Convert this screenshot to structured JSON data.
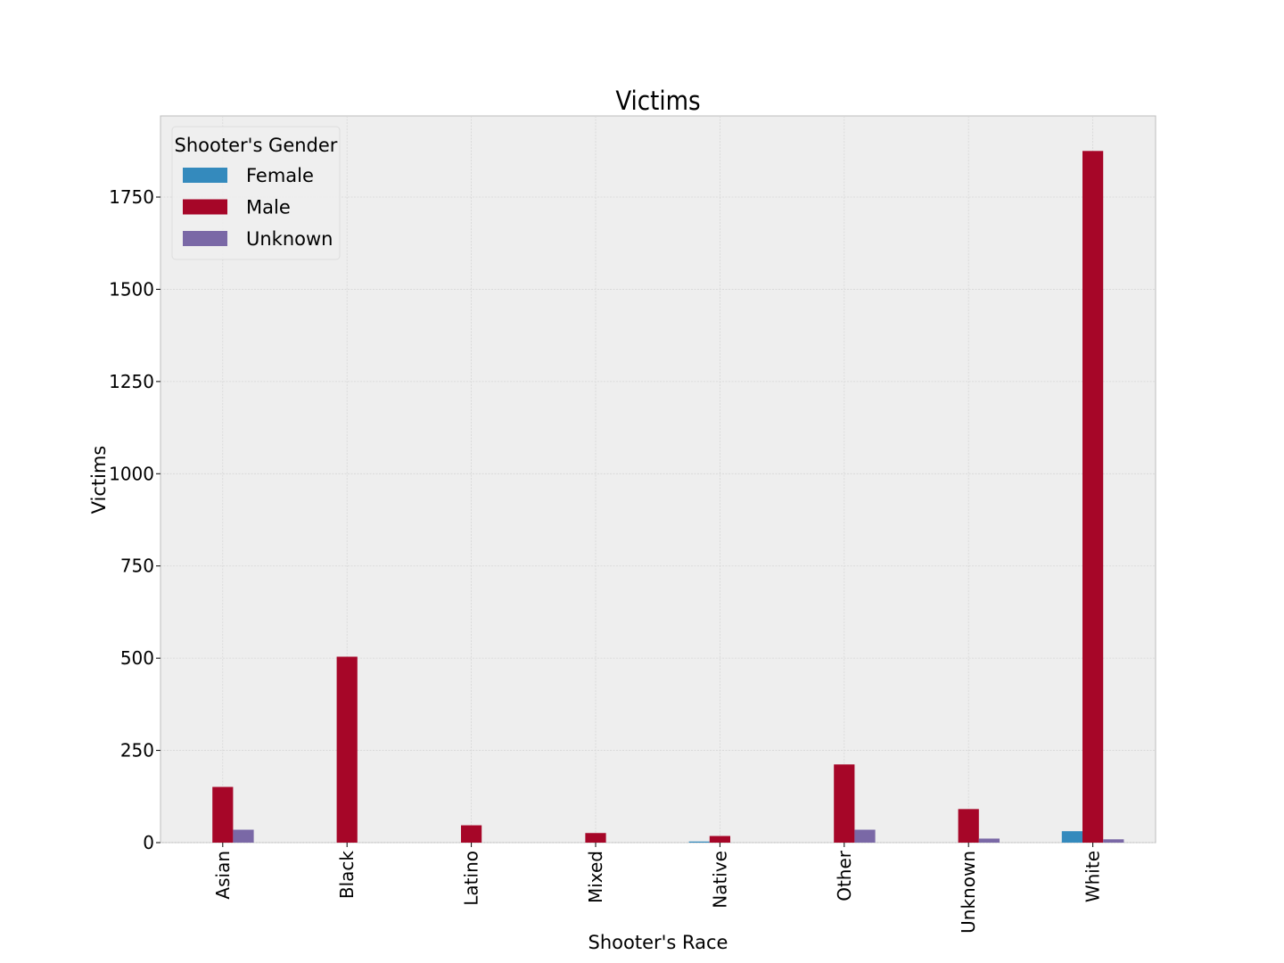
{
  "chart_data": {
    "type": "bar",
    "title": "Victims",
    "xlabel": "Shooter's Race",
    "ylabel": "Victims",
    "categories": [
      "Asian",
      "Black",
      "Latino",
      "Mixed",
      "Native",
      "Other",
      "Unknown",
      "White"
    ],
    "series": [
      {
        "name": "Female",
        "color": "#348ABD",
        "values": [
          0,
          0,
          0,
          0,
          3,
          0,
          0,
          31
        ]
      },
      {
        "name": "Male",
        "color": "#A60628",
        "values": [
          151,
          504,
          47,
          26,
          18,
          212,
          91,
          1875
        ]
      },
      {
        "name": "Unknown",
        "color": "#7A68A6",
        "values": [
          35,
          0,
          0,
          0,
          0,
          35,
          11,
          9
        ]
      }
    ],
    "ylim": [
      0,
      1970
    ],
    "yticks": [
      0,
      250,
      500,
      750,
      1000,
      1250,
      1500,
      1750
    ],
    "grid": true,
    "legend": {
      "title": "Shooter's Gender",
      "position": "upper-left"
    }
  }
}
